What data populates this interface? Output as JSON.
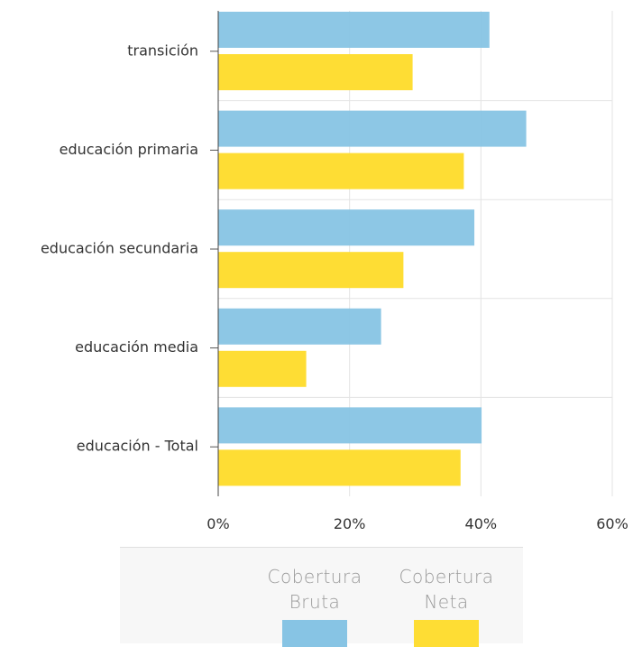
{
  "chart_data": {
    "type": "bar",
    "orientation": "horizontal",
    "categories": [
      "transición",
      "educación primaria",
      "educación secundaria",
      "educación media",
      "educación - Total"
    ],
    "series": [
      {
        "name": "Cobertura Bruta",
        "name_lines": [
          "Cobertura",
          "Bruta"
        ],
        "color": "#87c4e4",
        "values": [
          41.3,
          46.9,
          39.0,
          24.8,
          40.1
        ]
      },
      {
        "name": "Cobertura Neta",
        "name_lines": [
          "Cobertura",
          "Neta"
        ],
        "color": "#fedd34",
        "values": [
          29.6,
          37.4,
          28.2,
          13.4,
          36.9
        ]
      }
    ],
    "xlim": [
      0,
      60
    ],
    "xticks": [
      0,
      20,
      40,
      60
    ],
    "xtick_labels": [
      "0%",
      "20%",
      "40%",
      "60%"
    ],
    "grid": true,
    "legend_position": "bottom"
  }
}
